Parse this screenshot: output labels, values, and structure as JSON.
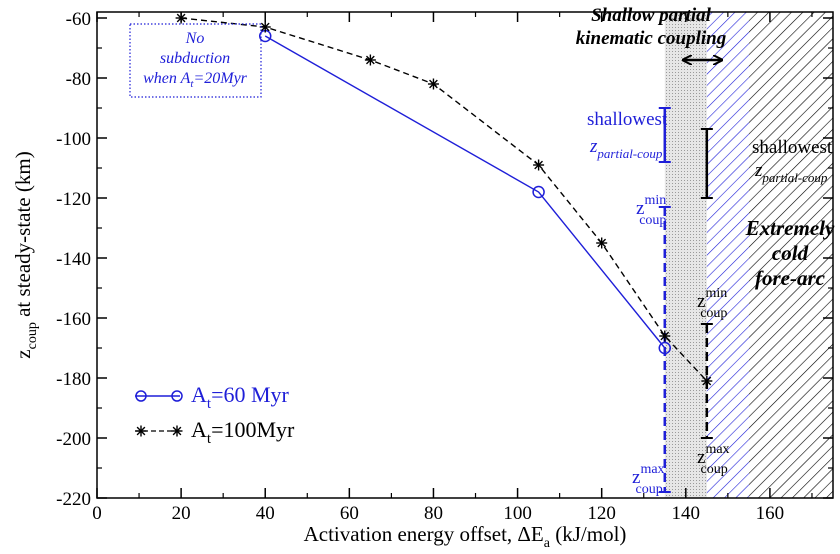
{
  "chart_data": {
    "type": "line",
    "xlabel": "Activation energy offset, ΔE",
    "xlabel_sub": "a",
    "xlabel_unit": " (kJ/mol)",
    "ylabel_pre": "z",
    "ylabel_sub": "coup",
    "ylabel_post": " at steady-state (km)",
    "xlim": [
      0,
      175
    ],
    "ylim": [
      -220,
      -58
    ],
    "x_ticks": [
      0,
      20,
      40,
      60,
      80,
      100,
      120,
      140,
      160
    ],
    "y_ticks": [
      -60,
      -80,
      -100,
      -120,
      -140,
      -160,
      -180,
      -200,
      -220
    ],
    "series": [
      {
        "name_main": "A",
        "name_sub": "t",
        "name_post": "=60 Myr",
        "color": "#1f1fd8",
        "marker": "circle",
        "line": "solid",
        "points": [
          [
            40,
            -66
          ],
          [
            105,
            -118
          ],
          [
            135,
            -170
          ]
        ]
      },
      {
        "name_main": "A",
        "name_sub": "t",
        "name_post": "=100Myr",
        "color": "#000000",
        "marker": "asterisk",
        "line": "dashed",
        "points": [
          [
            20,
            -60
          ],
          [
            40,
            -63
          ],
          [
            65,
            -74
          ],
          [
            80,
            -82
          ],
          [
            105,
            -109
          ],
          [
            120,
            -135
          ],
          [
            135,
            -166
          ],
          [
            145,
            -181
          ]
        ]
      }
    ],
    "bands": [
      {
        "kind": "gray-shade",
        "x": [
          135,
          145
        ]
      },
      {
        "kind": "blue-hatch",
        "x": [
          145,
          155
        ],
        "color": "#1f1fd8"
      },
      {
        "kind": "black-hatch",
        "x": [
          155,
          175
        ],
        "color": "#000000"
      }
    ],
    "ranges": [
      {
        "color": "#1f1fd8",
        "x": 135,
        "y": [
          -90,
          -108
        ],
        "style": "solid"
      },
      {
        "color": "#1f1fd8",
        "x": 135,
        "y": [
          -123,
          -218
        ],
        "style": "dashed"
      },
      {
        "color": "#000000",
        "x": 145,
        "y": [
          -97,
          -120
        ],
        "style": "solid"
      },
      {
        "color": "#000000",
        "x": 145,
        "y": [
          -162,
          -200
        ],
        "style": "dashed"
      }
    ],
    "annotations": {
      "no_subduction_line1": "No",
      "no_subduction_line2": "subduction",
      "no_subduction_line3_pre": "when A",
      "no_subduction_line3_sub": "t",
      "no_subduction_line3_post": "=20Myr",
      "shallow_line1": "Shallow partial",
      "shallow_line2": "kinematic coupling",
      "cold_line1": "Extremely",
      "cold_line2": "cold",
      "cold_line3": "fore-arc",
      "blue_shallowest": "shallowest",
      "blue_zpartial_main": "z",
      "blue_zpartial_sub": "partial-coup",
      "blue_zmin_main": "z",
      "blue_zmin_sup": "min",
      "blue_zmin_sub": "coup",
      "blue_zmax_main": "z",
      "blue_zmax_sup": "max",
      "blue_zmax_sub": "coup",
      "black_shallowest": "shallowest",
      "black_zpartial_main": "z",
      "black_zpartial_sub": "partial-coup",
      "black_zmin_main": "z",
      "black_zmin_sup": "min",
      "black_zmin_sub": "coup",
      "black_zmax_main": "z",
      "black_zmax_sup": "max",
      "black_zmax_sub": "coup"
    }
  }
}
